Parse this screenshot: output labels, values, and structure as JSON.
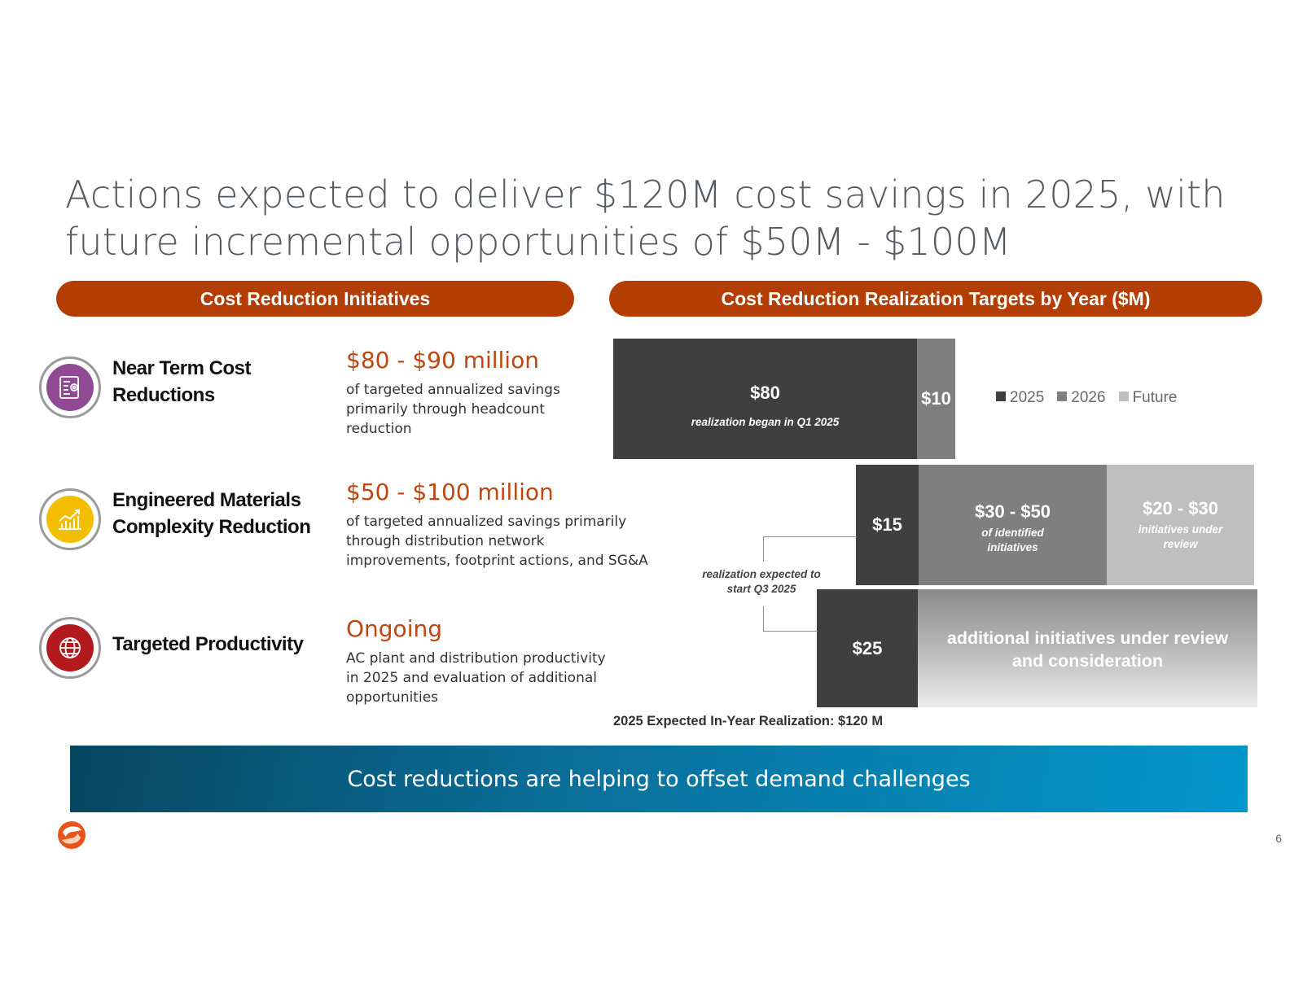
{
  "title": "Actions expected to deliver $120M cost savings in 2025, with future incremental opportunities of $50M - $100M",
  "left_header": "Cost Reduction Initiatives",
  "right_header": "Cost Reduction Realization Targets by Year ($M)",
  "initiatives": [
    {
      "name": "Near Term Cost Reductions",
      "amount": "$80 - $90 million",
      "description": "of targeted annualized savings primarily through headcount reduction",
      "icon": "blueprint-gear-icon",
      "icon_color": "#8f4a93"
    },
    {
      "name": "Engineered Materials Complexity Reduction",
      "amount": "$50 - $100 million",
      "description": "of targeted annualized savings primarily through distribution network improvements, footprint actions, and SG&A",
      "icon": "growth-chart-icon",
      "icon_color": "#f3bd00"
    },
    {
      "name": "Targeted Productivity",
      "amount": "Ongoing",
      "description": "AC plant and distribution productivity in 2025 and evaluation of additional opportunities",
      "icon": "globe-icon",
      "icon_color": "#b21a1e"
    }
  ],
  "chart_data": {
    "type": "bar",
    "orientation": "horizontal-stacked",
    "legend": [
      "2025",
      "2026",
      "Future"
    ],
    "legend_position": "right",
    "colors": {
      "2025": "#3f3f3f",
      "2026": "#7f7f7f",
      "Future": "#bfbfbf"
    },
    "rows": [
      {
        "segments": [
          {
            "series": "2025",
            "value": 80,
            "label": "$80",
            "note": "realization began in Q1 2025"
          },
          {
            "series": "2026",
            "value": 10,
            "label": "$10",
            "note": ""
          }
        ]
      },
      {
        "segments": [
          {
            "series": "2025",
            "value": 15,
            "label": "$15",
            "note": ""
          },
          {
            "series": "2026",
            "value": [
              30,
              50
            ],
            "label": "$30 - $50",
            "note": "of identified initiatives"
          },
          {
            "series": "Future",
            "value": [
              20,
              30
            ],
            "label": "$20 - $30",
            "note": "initiatives under review"
          }
        ]
      },
      {
        "segments": [
          {
            "series": "2025",
            "value": 25,
            "label": "$25",
            "note": ""
          },
          {
            "series": "2026",
            "value": null,
            "label": "additional initiatives under review and consideration",
            "note": ""
          }
        ]
      }
    ],
    "annotation": "realization expected to start Q3 2025",
    "footnote": "2025 Expected In-Year Realization: $120 M"
  },
  "footer_message": "Cost reductions are helping to offset demand challenges",
  "page_number": "6",
  "logo": "company-logo"
}
